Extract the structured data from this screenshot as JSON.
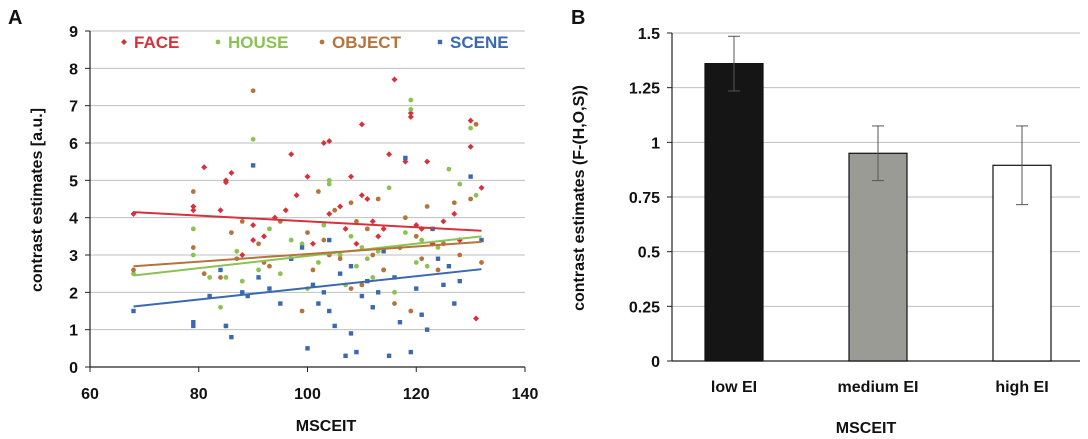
{
  "colors": {
    "face": "#d6323b",
    "house": "#8cc153",
    "object": "#b5743c",
    "scene": "#3a69b0",
    "grid": "#bfbfbf",
    "axis": "#222222"
  },
  "chart_data": [
    {
      "panel": "A",
      "type": "scatter",
      "xlabel": "MSCEIT",
      "ylabel": "contrast estimates  [a.u.]",
      "xlim": [
        60,
        140
      ],
      "ylim": [
        0,
        9
      ],
      "xticks": [
        "60",
        "80",
        "100",
        "120",
        "140"
      ],
      "yticks": [
        "0",
        "1",
        "2",
        "3",
        "4",
        "5",
        "6",
        "7",
        "8",
        "9"
      ],
      "grid": "horizontal",
      "legend": "top",
      "series": [
        {
          "name": "FACE",
          "color": "#d6323b",
          "marker": "diamond",
          "trendline": [
            [
              68,
              4.15
            ],
            [
              132,
              3.65
            ]
          ],
          "points": [
            [
              68,
              4.1
            ],
            [
              79,
              4.3
            ],
            [
              79,
              4.2
            ],
            [
              81,
              5.35
            ],
            [
              84,
              4.2
            ],
            [
              85,
              5.0
            ],
            [
              85,
              4.95
            ],
            [
              86,
              5.2
            ],
            [
              88,
              3.0
            ],
            [
              90,
              3.8
            ],
            [
              90,
              3.4
            ],
            [
              92,
              3.5
            ],
            [
              94,
              4.0
            ],
            [
              96,
              4.2
            ],
            [
              97,
              5.7
            ],
            [
              98,
              4.6
            ],
            [
              100,
              5.1
            ],
            [
              101,
              3.3
            ],
            [
              103,
              6.0
            ],
            [
              104,
              6.05
            ],
            [
              104,
              4.1
            ],
            [
              106,
              4.3
            ],
            [
              107,
              3.7
            ],
            [
              108,
              5.1
            ],
            [
              109,
              3.3
            ],
            [
              110,
              6.5
            ],
            [
              110,
              4.6
            ],
            [
              111,
              4.5
            ],
            [
              112,
              3.9
            ],
            [
              113,
              3.5
            ],
            [
              114,
              3.7
            ],
            [
              115,
              5.7
            ],
            [
              116,
              7.7
            ],
            [
              117,
              3.2
            ],
            [
              118,
              5.5
            ],
            [
              119,
              6.7
            ],
            [
              119,
              6.8
            ],
            [
              120,
              3.8
            ],
            [
              121,
              3.7
            ],
            [
              122,
              5.5
            ],
            [
              123,
              3.3
            ],
            [
              125,
              3.9
            ],
            [
              127,
              4.1
            ],
            [
              128,
              3.4
            ],
            [
              130,
              5.9
            ],
            [
              130,
              6.6
            ],
            [
              132,
              4.8
            ],
            [
              131,
              1.3
            ]
          ]
        },
        {
          "name": "HOUSE",
          "color": "#8cc153",
          "marker": "circle",
          "trendline": [
            [
              68,
              2.45
            ],
            [
              132,
              3.5
            ]
          ],
          "points": [
            [
              68,
              2.5
            ],
            [
              79,
              3.7
            ],
            [
              79,
              3.0
            ],
            [
              82,
              2.4
            ],
            [
              84,
              1.6
            ],
            [
              85,
              2.4
            ],
            [
              87,
              3.1
            ],
            [
              88,
              2.3
            ],
            [
              90,
              6.1
            ],
            [
              91,
              2.6
            ],
            [
              93,
              3.7
            ],
            [
              95,
              2.5
            ],
            [
              97,
              3.4
            ],
            [
              99,
              3.3
            ],
            [
              100,
              2.1
            ],
            [
              102,
              2.8
            ],
            [
              103,
              3.8
            ],
            [
              104,
              4.9
            ],
            [
              104,
              5.0
            ],
            [
              106,
              3.0
            ],
            [
              107,
              2.2
            ],
            [
              108,
              3.5
            ],
            [
              109,
              2.7
            ],
            [
              110,
              3.2
            ],
            [
              111,
              2.9
            ],
            [
              112,
              2.4
            ],
            [
              113,
              3.1
            ],
            [
              114,
              2.6
            ],
            [
              115,
              4.8
            ],
            [
              116,
              2.0
            ],
            [
              118,
              3.6
            ],
            [
              119,
              7.15
            ],
            [
              119,
              6.9
            ],
            [
              120,
              2.8
            ],
            [
              121,
              3.4
            ],
            [
              122,
              2.7
            ],
            [
              123,
              3.7
            ],
            [
              124,
              3.2
            ],
            [
              126,
              5.3
            ],
            [
              128,
              4.9
            ],
            [
              130,
              6.4
            ],
            [
              131,
              4.6
            ]
          ]
        },
        {
          "name": "OBJECT",
          "color": "#b5743c",
          "marker": "circle",
          "trendline": [
            [
              68,
              2.7
            ],
            [
              132,
              3.35
            ]
          ],
          "points": [
            [
              68,
              2.6
            ],
            [
              79,
              4.7
            ],
            [
              79,
              3.2
            ],
            [
              81,
              2.5
            ],
            [
              84,
              2.4
            ],
            [
              85,
              1.1
            ],
            [
              86,
              3.6
            ],
            [
              87,
              2.9
            ],
            [
              88,
              3.9
            ],
            [
              90,
              7.4
            ],
            [
              91,
              3.3
            ],
            [
              92,
              2.8
            ],
            [
              93,
              2.7
            ],
            [
              95,
              3.9
            ],
            [
              97,
              2.9
            ],
            [
              99,
              1.5
            ],
            [
              100,
              3.6
            ],
            [
              101,
              2.6
            ],
            [
              102,
              4.7
            ],
            [
              103,
              3.4
            ],
            [
              104,
              3.0
            ],
            [
              105,
              4.2
            ],
            [
              106,
              2.9
            ],
            [
              108,
              2.1
            ],
            [
              108,
              4.4
            ],
            [
              109,
              3.9
            ],
            [
              110,
              2.2
            ],
            [
              111,
              3.7
            ],
            [
              112,
              3.0
            ],
            [
              113,
              4.5
            ],
            [
              114,
              2.6
            ],
            [
              116,
              1.7
            ],
            [
              117,
              3.2
            ],
            [
              118,
              4.0
            ],
            [
              119,
              1.5
            ],
            [
              120,
              3.5
            ],
            [
              121,
              2.9
            ],
            [
              122,
              4.3
            ],
            [
              124,
              2.6
            ],
            [
              125,
              3.3
            ],
            [
              127,
              4.4
            ],
            [
              128,
              3.0
            ],
            [
              130,
              4.5
            ],
            [
              131,
              6.5
            ],
            [
              132,
              2.8
            ]
          ]
        },
        {
          "name": "SCENE",
          "color": "#3a69b0",
          "marker": "square",
          "trendline": [
            [
              68,
              1.62
            ],
            [
              132,
              2.62
            ]
          ],
          "points": [
            [
              68,
              1.5
            ],
            [
              79,
              1.1
            ],
            [
              79,
              1.2
            ],
            [
              82,
              1.9
            ],
            [
              84,
              2.6
            ],
            [
              85,
              1.1
            ],
            [
              86,
              0.8
            ],
            [
              88,
              2.0
            ],
            [
              89,
              1.9
            ],
            [
              90,
              5.4
            ],
            [
              91,
              2.4
            ],
            [
              93,
              2.1
            ],
            [
              95,
              1.7
            ],
            [
              97,
              2.9
            ],
            [
              99,
              3.2
            ],
            [
              100,
              0.5
            ],
            [
              101,
              2.2
            ],
            [
              102,
              1.7
            ],
            [
              103,
              2.0
            ],
            [
              104,
              1.5
            ],
            [
              104,
              3.4
            ],
            [
              105,
              1.1
            ],
            [
              106,
              2.5
            ],
            [
              107,
              0.3
            ],
            [
              108,
              0.9
            ],
            [
              108,
              2.7
            ],
            [
              109,
              0.4
            ],
            [
              110,
              1.9
            ],
            [
              111,
              2.3
            ],
            [
              112,
              1.6
            ],
            [
              113,
              2.0
            ],
            [
              114,
              3.1
            ],
            [
              115,
              0.3
            ],
            [
              116,
              2.4
            ],
            [
              117,
              1.2
            ],
            [
              118,
              5.6
            ],
            [
              119,
              0.4
            ],
            [
              120,
              2.1
            ],
            [
              121,
              1.4
            ],
            [
              122,
              1.0
            ],
            [
              123,
              3.7
            ],
            [
              124,
              2.9
            ],
            [
              125,
              2.2
            ],
            [
              126,
              2.7
            ],
            [
              127,
              1.7
            ],
            [
              128,
              2.3
            ],
            [
              130,
              5.1
            ],
            [
              132,
              3.4
            ]
          ]
        }
      ]
    },
    {
      "panel": "B",
      "type": "bar",
      "xlabel": "MSCEIT",
      "ylabel": "contrast estimates (F-(H,O,S))",
      "ylim": [
        0,
        1.5
      ],
      "yticks": [
        "0",
        "0.25",
        "0.5",
        "0.75",
        "1",
        "1.25",
        "1.5"
      ],
      "categories": [
        "low EI",
        "medium EI",
        "high EI"
      ],
      "values": [
        1.36,
        0.95,
        0.895
      ],
      "errors": [
        0.125,
        0.125,
        0.18
      ],
      "bar_colors": [
        "#151515",
        "#9b9b96",
        "#ffffff"
      ],
      "grid": "horizontal"
    }
  ]
}
